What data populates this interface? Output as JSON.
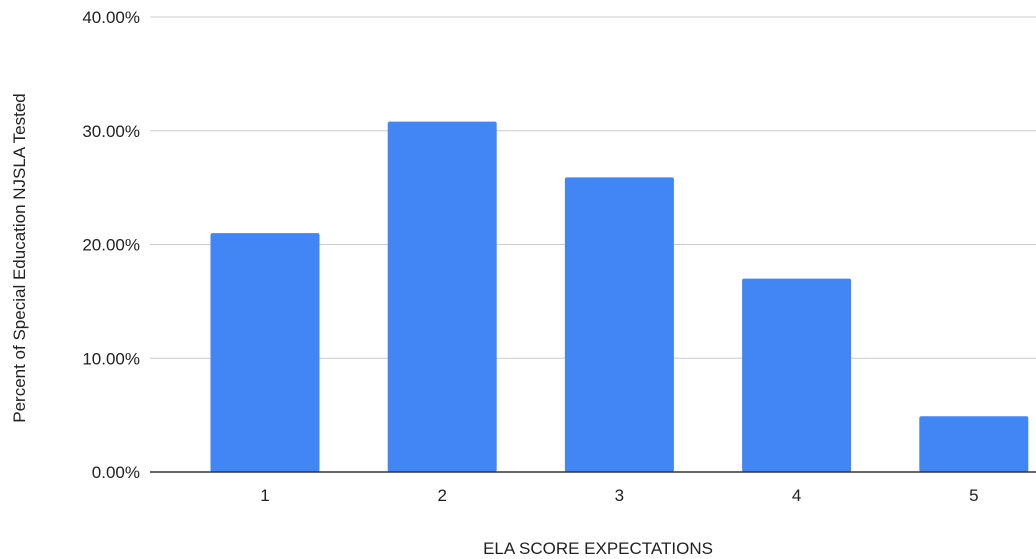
{
  "chart_data": {
    "type": "bar",
    "title": "",
    "xlabel": "ELA SCORE EXPECTATIONS",
    "ylabel": "Percent of Special Education NJSLA Tested",
    "categories": [
      "1",
      "2",
      "3",
      "4",
      "5"
    ],
    "values": [
      21.0,
      30.8,
      25.9,
      17.0,
      4.9
    ],
    "ylim": [
      0,
      40
    ],
    "yticks": [
      0,
      10,
      20,
      30,
      40
    ],
    "ytick_labels": [
      "0.00%",
      "10.00%",
      "20.00%",
      "30.00%",
      "40.00%"
    ],
    "grid": true,
    "legend": "none",
    "bar_color": "#4285f4",
    "gridline_color": "#cccccc",
    "baseline_color": "#333333"
  }
}
